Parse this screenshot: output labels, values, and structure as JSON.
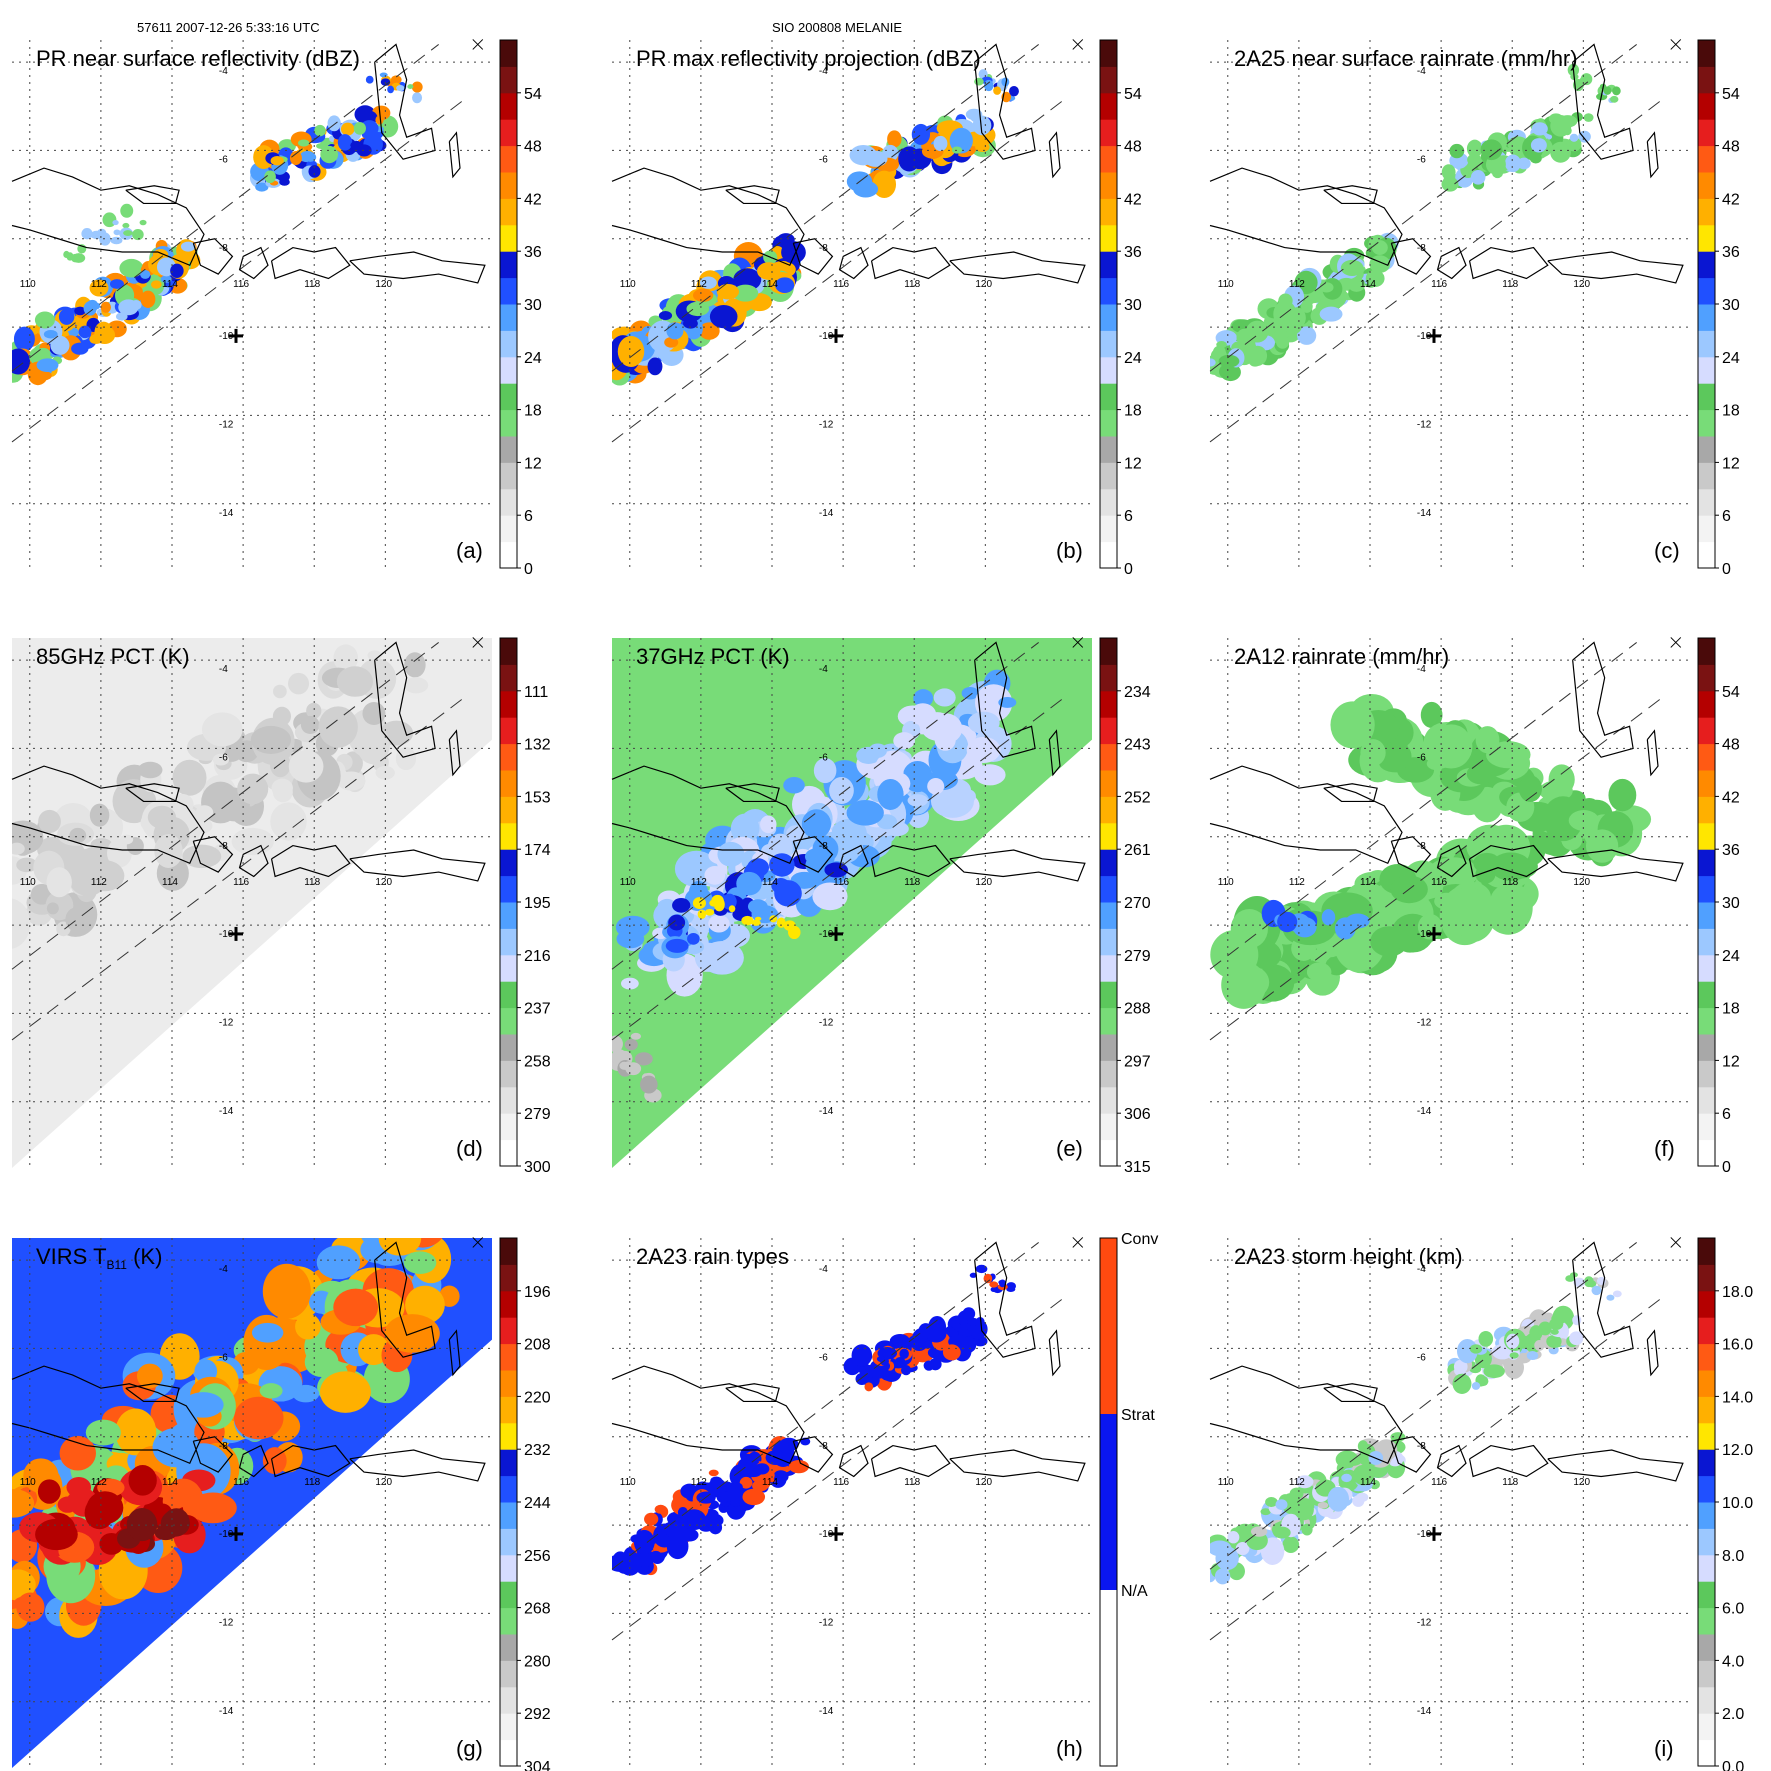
{
  "header": {
    "left": "57611 2007-12-26 5:33:16 UTC",
    "center": "SIO 200808 MELANIE"
  },
  "map": {
    "lon_range": [
      109.5,
      123
    ],
    "lat_range": [
      -15.5,
      -3.5
    ],
    "lon_ticks": [
      110,
      112,
      114,
      116,
      118,
      120
    ],
    "lat_ticks": [
      -4,
      -6,
      -8,
      -10,
      -12,
      -14
    ],
    "lon_labels": [
      "110",
      "112",
      "114",
      "116",
      "118",
      "120"
    ],
    "lat_labels": [
      "-4",
      "-6",
      "-8",
      "-10",
      "-12",
      "-14"
    ],
    "center_marker": [
      115.8,
      -10.2
    ]
  },
  "colors": {
    "ramp18": [
      "#ffffff",
      "#f3f3f3",
      "#e3e3e3",
      "#c9c9c9",
      "#a8a8a8",
      "#78dc78",
      "#5cc85c",
      "#d6dcff",
      "#9cc8ff",
      "#50a0ff",
      "#2050ff",
      "#0a16d2",
      "#ffe600",
      "#ffb000",
      "#ff8a00",
      "#ff5a14",
      "#e61e1e",
      "#b40000",
      "#7a1212",
      "#4a0a0a"
    ],
    "rain": {
      "conv": "#ff4a10",
      "strat": "#0a16f0",
      "na": "#ffffff"
    }
  },
  "panels": [
    {
      "id": "a",
      "title": "PR near surface reflectivity (dBZ)",
      "letter": "(a)",
      "cb": [
        "0",
        "6",
        "12",
        "18",
        "24",
        "30",
        "36",
        "42",
        "48",
        "54"
      ],
      "field": "pr_swath"
    },
    {
      "id": "b",
      "title": "PR max reflectivity projection (dBZ)",
      "letter": "(b)",
      "cb": [
        "0",
        "6",
        "12",
        "18",
        "24",
        "30",
        "36",
        "42",
        "48",
        "54"
      ],
      "field": "pr_swath_max"
    },
    {
      "id": "c",
      "title": "2A25 near surface rainrate (mm/hr)",
      "letter": "(c)",
      "cb": [
        "0",
        "6",
        "12",
        "18",
        "24",
        "30",
        "36",
        "42",
        "48",
        "54"
      ],
      "field": "pr_rain"
    },
    {
      "id": "d",
      "title": "85GHz PCT (K)",
      "letter": "(d)",
      "cb": [
        "300",
        "279",
        "258",
        "237",
        "216",
        "195",
        "174",
        "153",
        "132",
        "111"
      ],
      "field": "tmi85"
    },
    {
      "id": "e",
      "title": "37GHz PCT (K)",
      "letter": "(e)",
      "cb": [
        "315",
        "306",
        "297",
        "288",
        "279",
        "270",
        "261",
        "252",
        "243",
        "234"
      ],
      "field": "tmi37"
    },
    {
      "id": "f",
      "title": "2A12 rainrate (mm/hr)",
      "letter": "(f)",
      "cb": [
        "0",
        "6",
        "12",
        "18",
        "24",
        "30",
        "36",
        "42",
        "48",
        "54"
      ],
      "field": "tmi_rain"
    },
    {
      "id": "g",
      "title": "VIRS T",
      "title_sub": "B11",
      "title_tail": " (K)",
      "letter": "(g)",
      "cb": [
        "304",
        "292",
        "280",
        "268",
        "256",
        "244",
        "232",
        "220",
        "208",
        "196"
      ],
      "field": "virs"
    },
    {
      "id": "h",
      "title": "2A23 rain types",
      "letter": "(h)",
      "cb": [
        "N/A",
        "Strat",
        "Conv"
      ],
      "field": "raintype"
    },
    {
      "id": "i",
      "title": "2A23 storm height (km)",
      "letter": "(i)",
      "cb": [
        "0.0",
        "2.0",
        "4.0",
        "6.0",
        "8.0",
        "10.0",
        "12.0",
        "14.0",
        "16.0",
        "18.0"
      ],
      "field": "stormh"
    }
  ]
}
